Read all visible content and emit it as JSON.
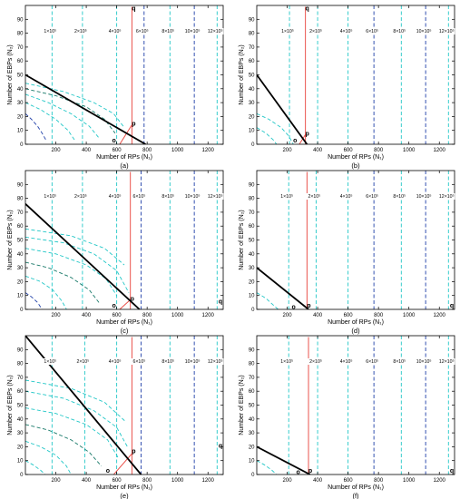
{
  "chart_data": [
    {
      "type": "line",
      "caption": "(a)",
      "xlabel": "Number of RPs (N₁)",
      "ylabel": "Number of EBPs (N₂)",
      "xlim": [
        0,
        1300
      ],
      "ylim": [
        0,
        100
      ],
      "xticks": [
        200,
        400,
        600,
        800,
        1000,
        1200
      ],
      "yticks": [
        0,
        10,
        20,
        30,
        40,
        50,
        60,
        70,
        80,
        90
      ],
      "contour_labels": [
        "1×10⁵",
        "2×10⁵",
        "4×10⁵",
        "6×10⁵",
        "8×10⁵",
        "10×10⁵",
        "12×10⁵"
      ],
      "contour_x": [
        175,
        375,
        600,
        780,
        950,
        1110,
        1260
      ],
      "contour_colors": [
        "#22c7c7",
        "#22c7c7",
        "#22c7c7",
        "#1f3fa8",
        "#22c7c7",
        "#1f3fa8",
        "#22c7c7"
      ],
      "left_curves": [
        {
          "color": "#1f3fa8",
          "points": [
            [
              0,
              22
            ],
            [
              40,
              18
            ],
            [
              80,
              13
            ],
            [
              110,
              8
            ],
            [
              140,
              2
            ]
          ]
        },
        {
          "color": "#22c7c7",
          "points": [
            [
              0,
              30
            ],
            [
              100,
              25
            ],
            [
              200,
              18
            ],
            [
              280,
              10
            ],
            [
              330,
              2
            ]
          ]
        },
        {
          "color": "#22c7c7",
          "points": [
            [
              0,
              36
            ],
            [
              150,
              30
            ],
            [
              300,
              22
            ],
            [
              420,
              13
            ],
            [
              480,
              5
            ]
          ]
        },
        {
          "color": "#1a7a6a",
          "points": [
            [
              0,
              40
            ],
            [
              200,
              35
            ],
            [
              400,
              27
            ],
            [
              520,
              18
            ],
            [
              590,
              8
            ]
          ]
        },
        {
          "color": "#22c7c7",
          "points": [
            [
              0,
              44
            ],
            [
              250,
              38
            ],
            [
              450,
              30
            ],
            [
              580,
              22
            ],
            [
              650,
              12
            ]
          ]
        }
      ],
      "black_line": [
        [
          0,
          50
        ],
        [
          790,
          0
        ]
      ],
      "red_vertical_x": 700,
      "red_vertical_ymax": 99,
      "red_segment": [
        [
          620,
          0
        ],
        [
          700,
          14
        ]
      ],
      "point_o": {
        "x": 600,
        "y": 2,
        "label": "o"
      },
      "point_p": {
        "x": 700,
        "y": 14,
        "label": "p"
      },
      "point_q": {
        "x": 700,
        "y": 97,
        "label": "q"
      }
    },
    {
      "type": "line",
      "caption": "(b)",
      "xlabel": "Number of RPs (N₁)",
      "ylabel": "Number of EBPs (N₂)",
      "xlim": [
        0,
        1300
      ],
      "ylim": [
        0,
        100
      ],
      "xticks": [
        200,
        400,
        600,
        800,
        1000,
        1200
      ],
      "yticks": [
        0,
        10,
        20,
        30,
        40,
        50,
        60,
        70,
        80,
        90
      ],
      "contour_labels": [
        "1×10⁵",
        "2×10⁵",
        "4×10⁵",
        "6×10⁵",
        "8×10⁵",
        "10×10⁵",
        "12×10⁵"
      ],
      "contour_x": [
        215,
        400,
        600,
        770,
        950,
        1110,
        1260
      ],
      "contour_colors": [
        "#22c7c7",
        "#22c7c7",
        "#22c7c7",
        "#1f3fa8",
        "#22c7c7",
        "#1f3fa8",
        "#22c7c7"
      ],
      "left_curves": [
        {
          "color": "#22c7c7",
          "points": [
            [
              0,
              22
            ],
            [
              80,
              18
            ],
            [
              160,
              12
            ],
            [
              210,
              6
            ],
            [
              240,
              0
            ]
          ]
        },
        {
          "color": "#22c7c7",
          "points": [
            [
              0,
              12
            ],
            [
              60,
              8
            ],
            [
              110,
              3
            ],
            [
              130,
              0
            ]
          ]
        }
      ],
      "black_line": [
        [
          0,
          50
        ],
        [
          330,
          0
        ]
      ],
      "red_vertical_x": 320,
      "red_vertical_ymax": 99,
      "red_segment": [
        [
          280,
          0
        ],
        [
          320,
          7
        ]
      ],
      "point_o": {
        "x": 270,
        "y": 2,
        "label": "o"
      },
      "point_p": {
        "x": 320,
        "y": 7,
        "label": "p"
      },
      "point_q": {
        "x": 320,
        "y": 97,
        "label": "q"
      }
    },
    {
      "type": "line",
      "caption": "(c)",
      "xlabel": "Number of RPs (N₁)",
      "ylabel": "Number of EBPs (N₂)",
      "xlim": [
        0,
        1300
      ],
      "ylim": [
        0,
        100
      ],
      "xticks": [
        200,
        400,
        600,
        800,
        1000,
        1200
      ],
      "yticks": [
        0,
        10,
        20,
        30,
        40,
        50,
        60,
        70,
        80,
        90
      ],
      "contour_labels": [
        "1×10⁵",
        "2×10⁵",
        "4×10⁵",
        "6×10⁵",
        "8×10⁵",
        "10×10⁵",
        "12×10⁵"
      ],
      "contour_x": [
        175,
        375,
        600,
        760,
        950,
        1110,
        1260
      ],
      "contour_colors": [
        "#22c7c7",
        "#22c7c7",
        "#22c7c7",
        "#1f3fa8",
        "#22c7c7",
        "#1f3fa8",
        "#22c7c7"
      ],
      "left_curves": [
        {
          "color": "#1f3fa8",
          "points": [
            [
              0,
              12
            ],
            [
              40,
              9
            ],
            [
              80,
              5
            ],
            [
              110,
              0
            ]
          ]
        },
        {
          "color": "#22c7c7",
          "points": [
            [
              0,
              24
            ],
            [
              100,
              20
            ],
            [
              180,
              14
            ],
            [
              240,
              6
            ],
            [
              270,
              0
            ]
          ]
        },
        {
          "color": "#1a7a6a",
          "points": [
            [
              0,
              34
            ],
            [
              150,
              30
            ],
            [
              300,
              23
            ],
            [
              420,
              14
            ],
            [
              490,
              4
            ]
          ]
        },
        {
          "color": "#22c7c7",
          "points": [
            [
              0,
              44
            ],
            [
              200,
              40
            ],
            [
              400,
              32
            ],
            [
              530,
              22
            ],
            [
              600,
              10
            ]
          ]
        },
        {
          "color": "#22c7c7",
          "points": [
            [
              0,
              52
            ],
            [
              250,
              48
            ],
            [
              450,
              40
            ],
            [
              600,
              28
            ],
            [
              680,
              12
            ]
          ]
        },
        {
          "color": "#22c7c7",
          "points": [
            [
              0,
              58
            ],
            [
              300,
              53
            ],
            [
              520,
              44
            ],
            [
              650,
              32
            ]
          ]
        }
      ],
      "black_line": [
        [
          0,
          76
        ],
        [
          750,
          0
        ]
      ],
      "red_vertical_x": 690,
      "red_vertical_ymax": 99,
      "red_segment": [
        [
          620,
          0
        ],
        [
          690,
          7
        ]
      ],
      "point_o": {
        "x": 600,
        "y": 2,
        "label": "o"
      },
      "point_p": {
        "x": 690,
        "y": 7,
        "label": "p"
      },
      "point_q": {
        "x": 1270,
        "y": 5,
        "label": "q"
      }
    },
    {
      "type": "line",
      "caption": "(d)",
      "xlabel": "Number of RPs (N₁)",
      "ylabel": "Number of EBPs (N₂)",
      "xlim": [
        0,
        1300
      ],
      "ylim": [
        0,
        100
      ],
      "xticks": [
        200,
        400,
        600,
        800,
        1000,
        1200
      ],
      "yticks": [
        0,
        10,
        20,
        30,
        40,
        50,
        60,
        70,
        80,
        90
      ],
      "contour_labels": [
        "1×10⁵",
        "2×10⁵",
        "4×10⁵",
        "6×10⁵",
        "8×10⁵",
        "10×10⁵",
        "12×10⁵"
      ],
      "contour_x": [
        210,
        390,
        600,
        770,
        950,
        1110,
        1260
      ],
      "contour_colors": [
        "#22c7c7",
        "#22c7c7",
        "#22c7c7",
        "#1f3fa8",
        "#22c7c7",
        "#1f3fa8",
        "#22c7c7"
      ],
      "left_curves": [
        {
          "color": "#22c7c7",
          "points": [
            [
              0,
              12
            ],
            [
              60,
              8
            ],
            [
              110,
              3
            ],
            [
              140,
              0
            ]
          ]
        }
      ],
      "black_line": [
        [
          0,
          30
        ],
        [
          340,
          0
        ]
      ],
      "red_vertical_x": 330,
      "red_vertical_ymax": 99,
      "red_segment": [
        [
          330,
          0
        ],
        [
          330,
          1
        ]
      ],
      "point_o": {
        "x": 260,
        "y": 1,
        "label": "o"
      },
      "point_p": {
        "x": 330,
        "y": 2,
        "label": "p"
      },
      "point_q": {
        "x": 1270,
        "y": 2,
        "label": "q"
      }
    },
    {
      "type": "line",
      "caption": "(e)",
      "xlabel": "Number of RPs (N₁)",
      "ylabel": "Number of EBPs (N₂)",
      "xlim": [
        0,
        1300
      ],
      "ylim": [
        0,
        100
      ],
      "xticks": [
        200,
        400,
        600,
        800,
        1000,
        1200
      ],
      "yticks": [
        0,
        10,
        20,
        30,
        40,
        50,
        60,
        70,
        80,
        90
      ],
      "contour_labels": [
        "1×10⁵",
        "2×10⁵",
        "4×10⁵",
        "6×10⁵",
        "8×10⁵",
        "10×10⁵",
        "12×10⁵"
      ],
      "contour_x": [
        175,
        390,
        600,
        760,
        950,
        1110,
        1260
      ],
      "contour_colors": [
        "#22c7c7",
        "#22c7c7",
        "#22c7c7",
        "#1f3fa8",
        "#22c7c7",
        "#1f3fa8",
        "#22c7c7"
      ],
      "left_curves": [
        {
          "color": "#22c7c7",
          "points": [
            [
              0,
              10
            ],
            [
              50,
              7
            ],
            [
              100,
              3
            ],
            [
              130,
              0
            ]
          ]
        },
        {
          "color": "#22c7c7",
          "points": [
            [
              0,
              24
            ],
            [
              100,
              20
            ],
            [
              200,
              14
            ],
            [
              270,
              6
            ],
            [
              300,
              0
            ]
          ]
        },
        {
          "color": "#1a7a6a",
          "points": [
            [
              0,
              36
            ],
            [
              150,
              32
            ],
            [
              300,
              25
            ],
            [
              420,
              16
            ],
            [
              500,
              6
            ]
          ]
        },
        {
          "color": "#22c7c7",
          "points": [
            [
              0,
              48
            ],
            [
              200,
              44
            ],
            [
              400,
              36
            ],
            [
              540,
              25
            ],
            [
              610,
              12
            ]
          ]
        },
        {
          "color": "#22c7c7",
          "points": [
            [
              0,
              60
            ],
            [
              250,
              55
            ],
            [
              450,
              46
            ],
            [
              600,
              34
            ],
            [
              670,
              20
            ]
          ]
        },
        {
          "color": "#22c7c7",
          "points": [
            [
              0,
              68
            ],
            [
              300,
              62
            ],
            [
              520,
              52
            ],
            [
              660,
              38
            ]
          ]
        }
      ],
      "black_line": [
        [
          0,
          100
        ],
        [
          760,
          0
        ]
      ],
      "red_vertical_x": 700,
      "red_vertical_ymax": 99,
      "red_segment": [
        [
          580,
          0
        ],
        [
          700,
          15
        ]
      ],
      "point_o": {
        "x": 560,
        "y": 2,
        "label": "o"
      },
      "point_p": {
        "x": 700,
        "y": 16,
        "label": "p"
      },
      "point_q": {
        "x": 1270,
        "y": 20,
        "label": "q"
      }
    },
    {
      "type": "line",
      "caption": "(f)",
      "xlabel": "Number of RPs (N₁)",
      "ylabel": "Number of EBPs (N₂)",
      "xlim": [
        0,
        1300
      ],
      "ylim": [
        0,
        100
      ],
      "xticks": [
        200,
        400,
        600,
        800,
        1000,
        1200
      ],
      "yticks": [
        0,
        10,
        20,
        30,
        40,
        50,
        60,
        70,
        80,
        90
      ],
      "contour_labels": [
        "1×10⁵",
        "2×10⁵",
        "4×10⁵",
        "6×10⁵",
        "8×10⁵",
        "10×10⁵",
        "12×10⁵"
      ],
      "contour_x": [
        210,
        400,
        600,
        770,
        950,
        1110,
        1260
      ],
      "contour_colors": [
        "#22c7c7",
        "#22c7c7",
        "#22c7c7",
        "#1f3fa8",
        "#22c7c7",
        "#1f3fa8",
        "#22c7c7"
      ],
      "left_curves": [
        {
          "color": "#22c7c7",
          "points": [
            [
              0,
              10
            ],
            [
              50,
              7
            ],
            [
              100,
              3
            ],
            [
              130,
              0
            ]
          ]
        }
      ],
      "black_line": [
        [
          0,
          20
        ],
        [
          350,
          0
        ]
      ],
      "red_vertical_x": 340,
      "red_vertical_ymax": 99,
      "red_segment": [
        [
          340,
          0
        ],
        [
          340,
          1
        ]
      ],
      "point_o": {
        "x": 290,
        "y": 1,
        "label": "o"
      },
      "point_p": {
        "x": 340,
        "y": 2,
        "label": "p"
      },
      "point_q": {
        "x": 1270,
        "y": 2,
        "label": "q"
      }
    }
  ]
}
